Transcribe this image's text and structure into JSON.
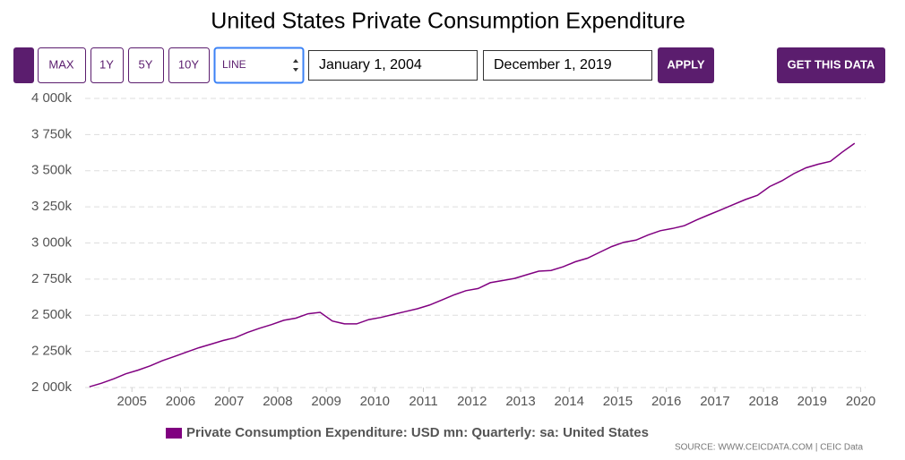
{
  "controls": {
    "buttons": [
      "MAX",
      "1Y",
      "5Y",
      "10Y"
    ],
    "chart_type": "LINE",
    "start_date": "January 1, 2004",
    "end_date": "December 1, 2019",
    "apply": "APPLY",
    "get_data": "GET THIS DATA"
  },
  "source": "SOURCE: WWW.CEICDATA.COM | CEIC Data",
  "chart_data": {
    "type": "line",
    "title": "United States Private Consumption Expenditure",
    "x": [
      2004.125,
      2004.375,
      2004.625,
      2004.875,
      2005.125,
      2005.375,
      2005.625,
      2005.875,
      2006.125,
      2006.375,
      2006.625,
      2006.875,
      2007.125,
      2007.375,
      2007.625,
      2007.875,
      2008.125,
      2008.375,
      2008.625,
      2008.875,
      2009.125,
      2009.375,
      2009.625,
      2009.875,
      2010.125,
      2010.375,
      2010.625,
      2010.875,
      2011.125,
      2011.375,
      2011.625,
      2011.875,
      2012.125,
      2012.375,
      2012.625,
      2012.875,
      2013.125,
      2013.375,
      2013.625,
      2013.875,
      2014.125,
      2014.375,
      2014.625,
      2014.875,
      2015.125,
      2015.375,
      2015.625,
      2015.875,
      2016.125,
      2016.375,
      2016.625,
      2016.875,
      2017.125,
      2017.375,
      2017.625,
      2017.875,
      2018.125,
      2018.375,
      2018.625,
      2018.875,
      2019.125,
      2019.375,
      2019.625,
      2019.875
    ],
    "series": [
      {
        "name": "Private Consumption Expenditure: USD mn: Quarterly: sa: United States",
        "color": "#800080",
        "values": [
          2005000,
          2030000,
          2060000,
          2095000,
          2120000,
          2150000,
          2185000,
          2215000,
          2245000,
          2275000,
          2300000,
          2325000,
          2345000,
          2380000,
          2410000,
          2435000,
          2465000,
          2480000,
          2510000,
          2520000,
          2460000,
          2440000,
          2440000,
          2470000,
          2485000,
          2505000,
          2525000,
          2545000,
          2570000,
          2605000,
          2640000,
          2670000,
          2685000,
          2725000,
          2740000,
          2755000,
          2780000,
          2805000,
          2810000,
          2835000,
          2870000,
          2895000,
          2935000,
          2975000,
          3005000,
          3020000,
          3055000,
          3085000,
          3100000,
          3120000,
          3160000,
          3195000,
          3230000,
          3265000,
          3300000,
          3330000,
          3390000,
          3430000,
          3480000,
          3520000,
          3545000,
          3565000,
          3630000,
          3690000
        ]
      }
    ],
    "xlim": [
      2004,
      2020.1
    ],
    "xticks": [
      2005,
      2006,
      2007,
      2008,
      2009,
      2010,
      2011,
      2012,
      2013,
      2014,
      2015,
      2016,
      2017,
      2018,
      2019,
      2020
    ],
    "ylim": [
      2000000,
      4000000
    ],
    "yticks": [
      {
        "value": 2000000,
        "label": "2 000k"
      },
      {
        "value": 2250000,
        "label": "2 250k"
      },
      {
        "value": 2500000,
        "label": "2 500k"
      },
      {
        "value": 2750000,
        "label": "2 750k"
      },
      {
        "value": 3000000,
        "label": "3 000k"
      },
      {
        "value": 3250000,
        "label": "3 250k"
      },
      {
        "value": 3500000,
        "label": "3 500k"
      },
      {
        "value": 3750000,
        "label": "3 750k"
      },
      {
        "value": 4000000,
        "label": "4 000k"
      }
    ],
    "grid": true,
    "legend": "bottom"
  }
}
